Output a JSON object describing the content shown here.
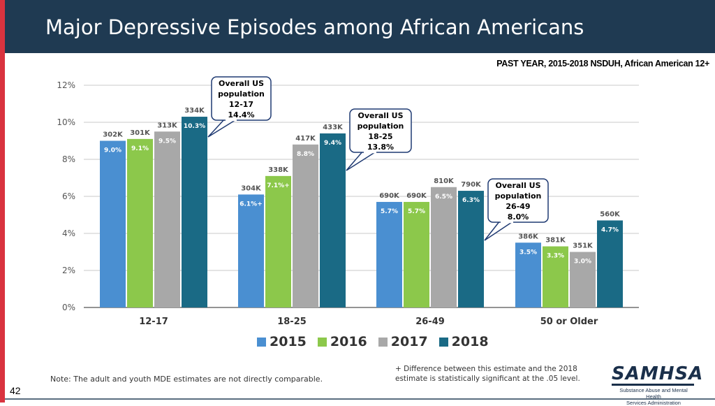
{
  "page": {
    "title": "Major Depressive Episodes among African Americans",
    "subtitle": "PAST YEAR, 2015-2018 NSDUH, African American 12+",
    "note": "Note: The adult and youth MDE estimates are not directly comparable.",
    "footnote": "+ Difference between this estimate and the 2018 estimate is statistically significant at the .05 level.",
    "page_number": "42",
    "logo": {
      "word": "SAMHSA",
      "line1": "Substance Abuse and Mental Health",
      "line2": "Services Administration"
    }
  },
  "colors": {
    "2015": "#4a8fd1",
    "2016": "#8cc84b",
    "2017": "#a8a8a8",
    "2018": "#1a6a85",
    "header": "#1f3a52"
  },
  "chart_data": {
    "type": "bar",
    "categories": [
      "12-17",
      "18-25",
      "26-49",
      "50 or Older"
    ],
    "ylim": [
      0,
      12
    ],
    "yticks": [
      "0%",
      "2%",
      "4%",
      "6%",
      "8%",
      "10%",
      "12%"
    ],
    "series": [
      {
        "name": "2015",
        "values": [
          9.0,
          6.1,
          5.7,
          3.5
        ],
        "labels": [
          "9.0%",
          "6.1%+",
          "5.7%",
          "3.5%"
        ],
        "counts": [
          "302K",
          "304K",
          "690K",
          "386K"
        ]
      },
      {
        "name": "2016",
        "values": [
          9.1,
          7.1,
          5.7,
          3.3
        ],
        "labels": [
          "9.1%",
          "7.1%+",
          "5.7%",
          "3.3%"
        ],
        "counts": [
          "301K",
          "338K",
          "690K",
          "381K"
        ]
      },
      {
        "name": "2017",
        "values": [
          9.5,
          8.8,
          6.5,
          3.0
        ],
        "labels": [
          "9.5%",
          "8.8%",
          "6.5%",
          "3.0%"
        ],
        "counts": [
          "313K",
          "417K",
          "810K",
          "351K"
        ]
      },
      {
        "name": "2018",
        "values": [
          10.3,
          9.4,
          6.3,
          4.7
        ],
        "labels": [
          "10.3%",
          "9.4%",
          "6.3%",
          "4.7%"
        ],
        "counts": [
          "334K",
          "433K",
          "790K",
          "560K"
        ]
      }
    ],
    "callouts": [
      {
        "lines": [
          "Overall US",
          "population",
          "12-17",
          "14.4%"
        ]
      },
      {
        "lines": [
          "Overall US",
          "population",
          "18-25",
          "13.8%"
        ]
      },
      {
        "lines": [
          "Overall US",
          "population",
          "26-49",
          "8.0%"
        ]
      }
    ]
  }
}
